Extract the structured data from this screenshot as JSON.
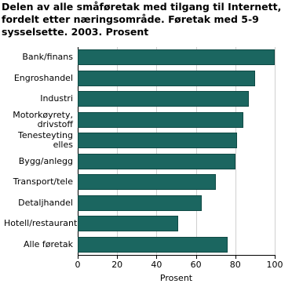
{
  "chart_data": {
    "type": "bar",
    "orientation": "horizontal",
    "title": "Delen av alle småføretak med tilgang til Internett, fordelt etter næringsområde. Føretak med 5-9 sysselsette. 2003. Prosent",
    "categories": [
      "Bank/finans",
      "Engroshandel",
      "Industri",
      "Motorkøyrety, drivstoff",
      "Tenesteyting elles",
      "Bygg/anlegg",
      "Transport/tele",
      "Detaljhandel",
      "Hotell/restaurant",
      "Alle føretak"
    ],
    "values": [
      100,
      90,
      87,
      84,
      81,
      80,
      70,
      63,
      51,
      76
    ],
    "color": "#1b6660",
    "x_label": "Prosent",
    "xlim": [
      0,
      100
    ],
    "xticks": [
      0,
      20,
      40,
      60,
      80,
      100
    ],
    "grid": true
  }
}
